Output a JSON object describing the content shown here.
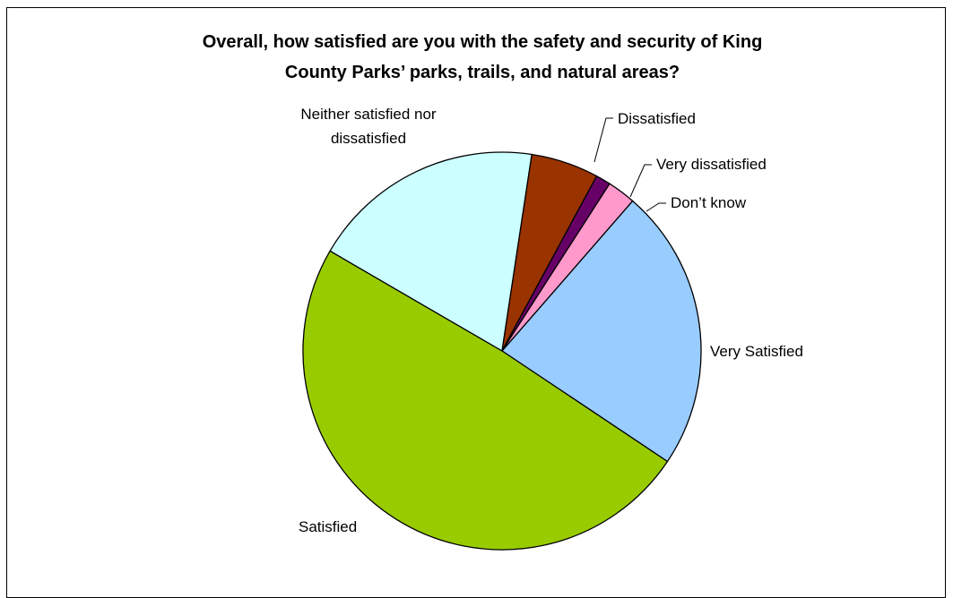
{
  "chart_data": {
    "type": "pie",
    "title_lines": [
      "Overall, how satisfied are you with the safety and security of King",
      "County Parks’ parks, trails, and natural areas?"
    ],
    "slices": [
      {
        "label": "Very Satisfied",
        "label_lines": [
          "Very Satisfied"
        ],
        "value": 23,
        "color": "#99CCFF"
      },
      {
        "label": "Satisfied",
        "label_lines": [
          "Satisfied"
        ],
        "value": 49,
        "color": "#99CC00"
      },
      {
        "label": "Neither satisfied nor dissatisfied",
        "label_lines": [
          "Neither satisfied nor",
          "dissatisfied"
        ],
        "value": 19,
        "color": "#CCFFFF"
      },
      {
        "label": "Dissatisfied",
        "label_lines": [
          "Dissatisfied"
        ],
        "value": 5.5,
        "color": "#993300"
      },
      {
        "label": "Very dissatisfied",
        "label_lines": [
          "Very dissatisfied"
        ],
        "value": 1.2,
        "color": "#660066"
      },
      {
        "label": "Don’t know",
        "label_lines": [
          "Don’t know"
        ],
        "value": 2.3,
        "color": "#FF99CC"
      }
    ],
    "legend": "none"
  }
}
